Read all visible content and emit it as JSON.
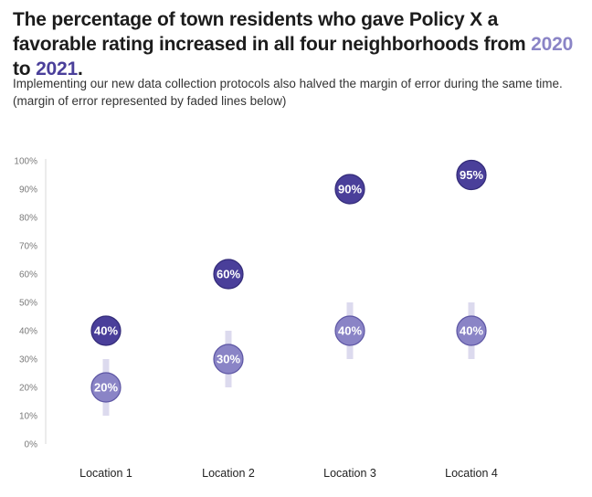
{
  "header": {
    "title_part1": "The percentage of town residents who gave Policy X a favorable rating increased in all four neighborhoods from ",
    "year_a": "2020",
    "title_mid": " to ",
    "year_b": "2021",
    "title_end": ".",
    "subtitle_line1": "Implementing our new data collection protocols also halved the margin of error during the same time.",
    "subtitle_line2": "(margin of error represented by faded lines below)"
  },
  "colors": {
    "series_2020": "#8a84c6",
    "series_2020_stroke": "#5c55a3",
    "series_2021": "#4a3f9a",
    "series_2021_stroke": "#322a78",
    "error_bar": "#dcdaee",
    "axis_line": "#d8d8d8",
    "year_2020_text": "#8a84c6",
    "year_2021_text": "#4a3f9a"
  },
  "chart_data": {
    "type": "scatter",
    "title": "The percentage of town residents who gave Policy X a favorable rating increased in all four neighborhoods from 2020 to 2021.",
    "subtitle": "Implementing our new data collection protocols also halved the margin of error during the same time.",
    "categories": [
      "Location 1",
      "Location 2",
      "Location 3",
      "Location 4"
    ],
    "ylim": [
      0,
      100
    ],
    "yticks": [
      0,
      10,
      20,
      30,
      40,
      50,
      60,
      70,
      80,
      90,
      100
    ],
    "ytick_labels": [
      "0%",
      "10%",
      "20%",
      "30%",
      "40%",
      "50%",
      "60%",
      "70%",
      "80%",
      "90%",
      "100%"
    ],
    "grid": false,
    "series": [
      {
        "name": "2020",
        "values": [
          20,
          30,
          40,
          40
        ],
        "labels": [
          "20%",
          "30%",
          "40%",
          "40%"
        ],
        "error_low": [
          10,
          20,
          30,
          30
        ],
        "error_high": [
          30,
          40,
          50,
          50
        ]
      },
      {
        "name": "2021",
        "values": [
          40,
          60,
          90,
          95
        ],
        "labels": [
          "40%",
          "60%",
          "90%",
          "95%"
        ]
      }
    ]
  }
}
